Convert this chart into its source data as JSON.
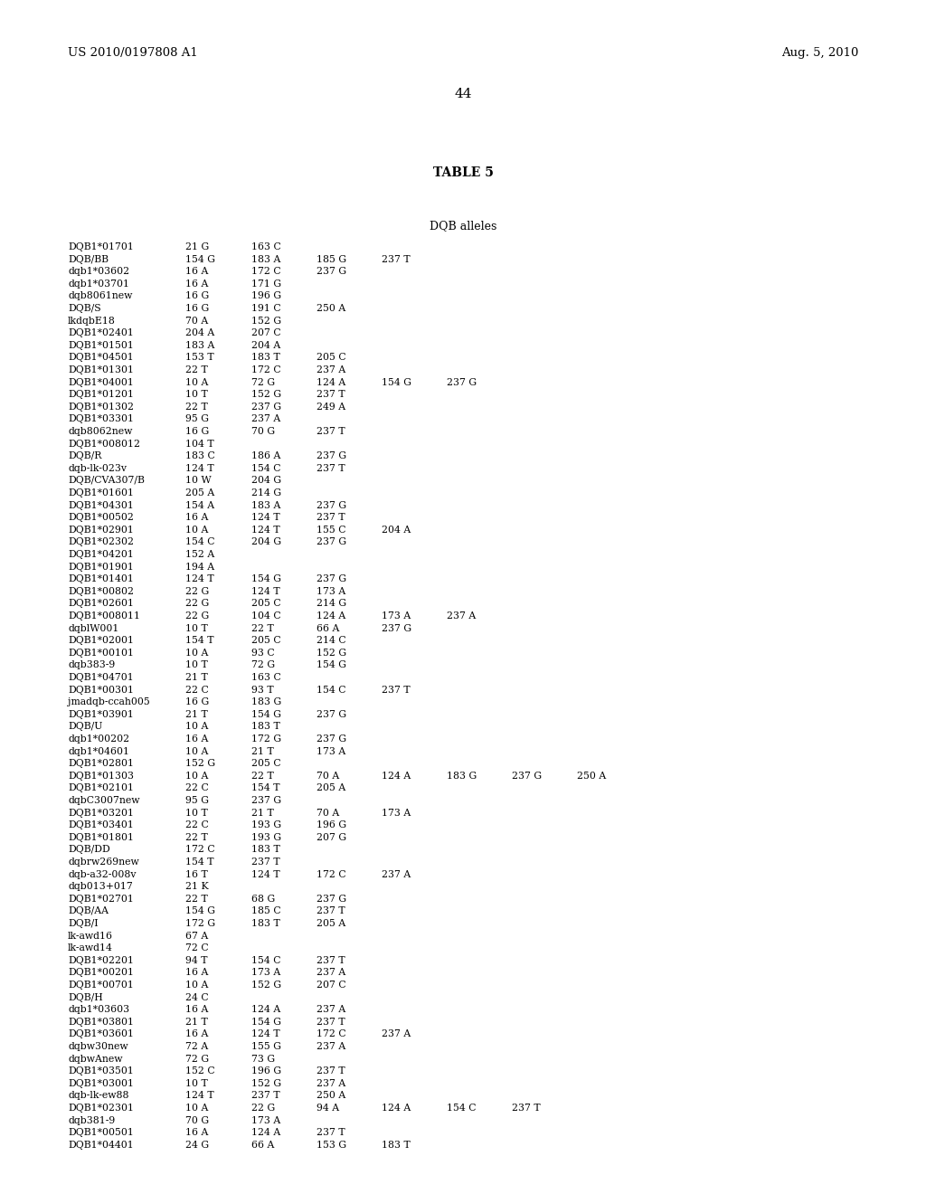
{
  "header_left": "US 2010/0197808 A1",
  "header_right": "Aug. 5, 2010",
  "page_number": "44",
  "table_title": "TABLE 5",
  "table_subtitle": "DQB alleles",
  "rows": [
    [
      "DQB1*01701",
      "21 G",
      "163 C",
      "",
      "",
      "",
      "",
      ""
    ],
    [
      "DQB/BB",
      "154 G",
      "183 A",
      "185 G",
      "237 T",
      "",
      "",
      ""
    ],
    [
      "dqb1*03602",
      "16 A",
      "172 C",
      "237 G",
      "",
      "",
      "",
      ""
    ],
    [
      "dqb1*03701",
      "16 A",
      "171 G",
      "",
      "",
      "",
      "",
      ""
    ],
    [
      "dqb8061new",
      "16 G",
      "196 G",
      "",
      "",
      "",
      "",
      ""
    ],
    [
      "DQB/S",
      "16 G",
      "191 C",
      "250 A",
      "",
      "",
      "",
      ""
    ],
    [
      "lkdqbE18",
      "70 A",
      "152 G",
      "",
      "",
      "",
      "",
      ""
    ],
    [
      "DQB1*02401",
      "204 A",
      "207 C",
      "",
      "",
      "",
      "",
      ""
    ],
    [
      "DQB1*01501",
      "183 A",
      "204 A",
      "",
      "",
      "",
      "",
      ""
    ],
    [
      "DQB1*04501",
      "153 T",
      "183 T",
      "205 C",
      "",
      "",
      "",
      ""
    ],
    [
      "DQB1*01301",
      "22 T",
      "172 C",
      "237 A",
      "",
      "",
      "",
      ""
    ],
    [
      "DQB1*04001",
      "10 A",
      "72 G",
      "124 A",
      "154 G",
      "237 G",
      "",
      ""
    ],
    [
      "DQB1*01201",
      "10 T",
      "152 G",
      "237 T",
      "",
      "",
      "",
      ""
    ],
    [
      "DQB1*01302",
      "22 T",
      "237 G",
      "249 A",
      "",
      "",
      "",
      ""
    ],
    [
      "DQB1*03301",
      "95 G",
      "237 A",
      "",
      "",
      "",
      "",
      ""
    ],
    [
      "dqb8062new",
      "16 G",
      "70 G",
      "237 T",
      "",
      "",
      "",
      ""
    ],
    [
      "DQB1*008012",
      "104 T",
      "",
      "",
      "",
      "",
      "",
      ""
    ],
    [
      "DQB/R",
      "183 C",
      "186 A",
      "237 G",
      "",
      "",
      "",
      ""
    ],
    [
      "dqb-lk-023v",
      "124 T",
      "154 C",
      "237 T",
      "",
      "",
      "",
      ""
    ],
    [
      "DQB/CVA307/B",
      "10 W",
      "204 G",
      "",
      "",
      "",
      "",
      ""
    ],
    [
      "DQB1*01601",
      "205 A",
      "214 G",
      "",
      "",
      "",
      "",
      ""
    ],
    [
      "DQB1*04301",
      "154 A",
      "183 A",
      "237 G",
      "",
      "",
      "",
      ""
    ],
    [
      "DQB1*00502",
      "16 A",
      "124 T",
      "237 T",
      "",
      "",
      "",
      ""
    ],
    [
      "DQB1*02901",
      "10 A",
      "124 T",
      "155 C",
      "204 A",
      "",
      "",
      ""
    ],
    [
      "DQB1*02302",
      "154 C",
      "204 G",
      "237 G",
      "",
      "",
      "",
      ""
    ],
    [
      "DQB1*04201",
      "152 A",
      "",
      "",
      "",
      "",
      "",
      ""
    ],
    [
      "DQB1*01901",
      "194 A",
      "",
      "",
      "",
      "",
      "",
      ""
    ],
    [
      "DQB1*01401",
      "124 T",
      "154 G",
      "237 G",
      "",
      "",
      "",
      ""
    ],
    [
      "DQB1*00802",
      "22 G",
      "124 T",
      "173 A",
      "",
      "",
      "",
      ""
    ],
    [
      "DQB1*02601",
      "22 G",
      "205 C",
      "214 G",
      "",
      "",
      "",
      ""
    ],
    [
      "DQB1*008011",
      "22 G",
      "104 C",
      "124 A",
      "173 A",
      "237 A",
      "",
      ""
    ],
    [
      "dqblW001",
      "10 T",
      "22 T",
      "66 A",
      "237 G",
      "",
      "",
      ""
    ],
    [
      "DQB1*02001",
      "154 T",
      "205 C",
      "214 C",
      "",
      "",
      "",
      ""
    ],
    [
      "DQB1*00101",
      "10 A",
      "93 C",
      "152 G",
      "",
      "",
      "",
      ""
    ],
    [
      "dqb383-9",
      "10 T",
      "72 G",
      "154 G",
      "",
      "",
      "",
      ""
    ],
    [
      "DQB1*04701",
      "21 T",
      "163 C",
      "",
      "",
      "",
      "",
      ""
    ],
    [
      "DQB1*00301",
      "22 C",
      "93 T",
      "154 C",
      "237 T",
      "",
      "",
      ""
    ],
    [
      "jmadqb-ccah005",
      "16 G",
      "183 G",
      "",
      "",
      "",
      "",
      ""
    ],
    [
      "DQB1*03901",
      "21 T",
      "154 G",
      "237 G",
      "",
      "",
      "",
      ""
    ],
    [
      "DQB/U",
      "10 A",
      "183 T",
      "",
      "",
      "",
      "",
      ""
    ],
    [
      "dqb1*00202",
      "16 A",
      "172 G",
      "237 G",
      "",
      "",
      "",
      ""
    ],
    [
      "dqb1*04601",
      "10 A",
      "21 T",
      "173 A",
      "",
      "",
      "",
      ""
    ],
    [
      "DQB1*02801",
      "152 G",
      "205 C",
      "",
      "",
      "",
      "",
      ""
    ],
    [
      "DQB1*01303",
      "10 A",
      "22 T",
      "70 A",
      "124 A",
      "183 G",
      "237 G",
      "250 A"
    ],
    [
      "DQB1*02101",
      "22 C",
      "154 T",
      "205 A",
      "",
      "",
      "",
      ""
    ],
    [
      "dqbC3007new",
      "95 G",
      "237 G",
      "",
      "",
      "",
      "",
      ""
    ],
    [
      "DQB1*03201",
      "10 T",
      "21 T",
      "70 A",
      "173 A",
      "",
      "",
      ""
    ],
    [
      "DQB1*03401",
      "22 C",
      "193 G",
      "196 G",
      "",
      "",
      "",
      ""
    ],
    [
      "DQB1*01801",
      "22 T",
      "193 G",
      "207 G",
      "",
      "",
      "",
      ""
    ],
    [
      "DQB/DD",
      "172 C",
      "183 T",
      "",
      "",
      "",
      "",
      ""
    ],
    [
      "dqbrw269new",
      "154 T",
      "237 T",
      "",
      "",
      "",
      "",
      ""
    ],
    [
      "dqb-a32-008v",
      "16 T",
      "124 T",
      "172 C",
      "237 A",
      "",
      "",
      ""
    ],
    [
      "dqb013+017",
      "21 K",
      "",
      "",
      "",
      "",
      "",
      ""
    ],
    [
      "DQB1*02701",
      "22 T",
      "68 G",
      "237 G",
      "",
      "",
      "",
      ""
    ],
    [
      "DQB/AA",
      "154 G",
      "185 C",
      "237 T",
      "",
      "",
      "",
      ""
    ],
    [
      "DQB/I",
      "172 G",
      "183 T",
      "205 A",
      "",
      "",
      "",
      ""
    ],
    [
      "lk-awd16",
      "67 A",
      "",
      "",
      "",
      "",
      "",
      ""
    ],
    [
      "lk-awd14",
      "72 C",
      "",
      "",
      "",
      "",
      "",
      ""
    ],
    [
      "DQB1*02201",
      "94 T",
      "154 C",
      "237 T",
      "",
      "",
      "",
      ""
    ],
    [
      "DQB1*00201",
      "16 A",
      "173 A",
      "237 A",
      "",
      "",
      "",
      ""
    ],
    [
      "DQB1*00701",
      "10 A",
      "152 G",
      "207 C",
      "",
      "",
      "",
      ""
    ],
    [
      "DQB/H",
      "24 C",
      "",
      "",
      "",
      "",
      "",
      ""
    ],
    [
      "dqb1*03603",
      "16 A",
      "124 A",
      "237 A",
      "",
      "",
      "",
      ""
    ],
    [
      "DQB1*03801",
      "21 T",
      "154 G",
      "237 T",
      "",
      "",
      "",
      ""
    ],
    [
      "DQB1*03601",
      "16 A",
      "124 T",
      "172 C",
      "237 A",
      "",
      "",
      ""
    ],
    [
      "dqbw30new",
      "72 A",
      "155 G",
      "237 A",
      "",
      "",
      "",
      ""
    ],
    [
      "dqbwAnew",
      "72 G",
      "73 G",
      "",
      "",
      "",
      "",
      ""
    ],
    [
      "DQB1*03501",
      "152 C",
      "196 G",
      "237 T",
      "",
      "",
      "",
      ""
    ],
    [
      "DQB1*03001",
      "10 T",
      "152 G",
      "237 A",
      "",
      "",
      "",
      ""
    ],
    [
      "dqb-lk-ew88",
      "124 T",
      "237 T",
      "250 A",
      "",
      "",
      "",
      ""
    ],
    [
      "DQB1*02301",
      "10 A",
      "22 G",
      "94 A",
      "124 A",
      "154 C",
      "237 T",
      ""
    ],
    [
      "dqb381-9",
      "70 G",
      "173 A",
      "",
      "",
      "",
      "",
      ""
    ],
    [
      "DQB1*00501",
      "16 A",
      "124 A",
      "237 T",
      "",
      "",
      "",
      ""
    ],
    [
      "DQB1*04401",
      "24 G",
      "66 A",
      "153 G",
      "183 T",
      "",
      "",
      ""
    ]
  ],
  "fig_width": 10.24,
  "fig_height": 13.2,
  "dpi": 100
}
